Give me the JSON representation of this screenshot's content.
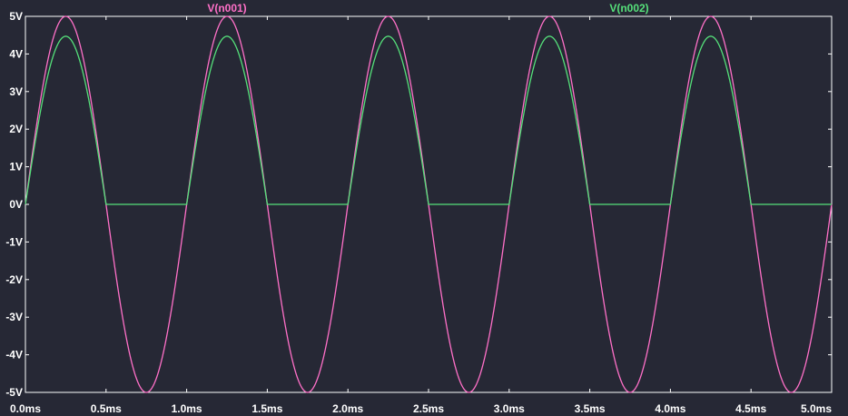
{
  "chart_data": {
    "type": "line",
    "title": "",
    "xlabel": "",
    "ylabel": "",
    "xlim": [
      0,
      5.0
    ],
    "ylim": [
      -5,
      5
    ],
    "grid": false,
    "legend_placement": "top",
    "x_unit": "ms",
    "y_unit": "V",
    "x_ticks": [
      "0.0ms",
      "0.5ms",
      "1.0ms",
      "1.5ms",
      "2.0ms",
      "2.5ms",
      "3.0ms",
      "3.5ms",
      "4.0ms",
      "4.5ms",
      "5.0ms"
    ],
    "y_ticks": [
      "5V",
      "4V",
      "3V",
      "2V",
      "1V",
      "0V",
      "-1V",
      "-2V",
      "-3V",
      "-4V",
      "-5V"
    ],
    "series": [
      {
        "name": "V(n001)",
        "color": "#ff70c8",
        "frequency_hz": 1000,
        "amplitude_v": 5,
        "x": [
          0,
          0.125,
          0.25,
          0.375,
          0.5,
          0.625,
          0.75,
          0.875,
          1.0,
          1.125,
          1.25,
          1.375,
          1.5,
          1.625,
          1.75,
          1.875,
          2.0,
          2.125,
          2.25,
          2.375,
          2.5,
          2.625,
          2.75,
          2.875,
          3.0,
          3.125,
          3.25,
          3.375,
          3.5,
          3.625,
          3.75,
          3.875,
          4.0,
          4.125,
          4.25,
          4.375,
          4.5,
          4.625,
          4.75,
          4.875,
          5.0
        ],
        "values": [
          0,
          3.54,
          5,
          3.54,
          0,
          -3.54,
          -5,
          -3.54,
          0,
          3.54,
          5,
          3.54,
          0,
          -3.54,
          -5,
          -3.54,
          0,
          3.54,
          5,
          3.54,
          0,
          -3.54,
          -5,
          -3.54,
          0,
          3.54,
          5,
          3.54,
          0,
          -3.54,
          -5,
          -3.54,
          0,
          3.54,
          5,
          3.54,
          0,
          -3.54,
          -5,
          -3.54,
          0
        ]
      },
      {
        "name": "V(n002)",
        "color": "#55e07a",
        "peak_v": 4.47,
        "diode_drop_v": 0.53,
        "x": [
          0,
          0.05,
          0.125,
          0.25,
          0.375,
          0.45,
          0.5,
          0.625,
          0.75,
          0.875,
          1.0,
          1.05,
          1.125,
          1.25,
          1.375,
          1.45,
          1.5,
          1.625,
          1.75,
          1.875,
          2.0,
          2.05,
          2.125,
          2.25,
          2.375,
          2.45,
          2.5,
          2.625,
          2.75,
          2.875,
          3.0,
          3.05,
          3.125,
          3.25,
          3.375,
          3.45,
          3.5,
          3.625,
          3.75,
          3.875,
          4.0,
          4.05,
          4.125,
          4.25,
          4.375,
          4.45,
          4.5,
          4.625,
          4.75,
          4.875,
          5.0
        ],
        "values": [
          0,
          1.0,
          3.01,
          4.47,
          3.01,
          1.0,
          0,
          0,
          0,
          0,
          0,
          1.0,
          3.01,
          4.47,
          3.01,
          1.0,
          0,
          0,
          0,
          0,
          0,
          1.0,
          3.01,
          4.47,
          3.01,
          1.0,
          0,
          0,
          0,
          0,
          0,
          1.0,
          3.01,
          4.47,
          3.01,
          1.0,
          0,
          0,
          0,
          0,
          0,
          1.0,
          3.01,
          4.47,
          3.01,
          1.0,
          0,
          0,
          0,
          0,
          0
        ]
      }
    ]
  },
  "colors": {
    "background": "#262835",
    "frame": "#ffffff",
    "tick_text": "#ffffff"
  }
}
